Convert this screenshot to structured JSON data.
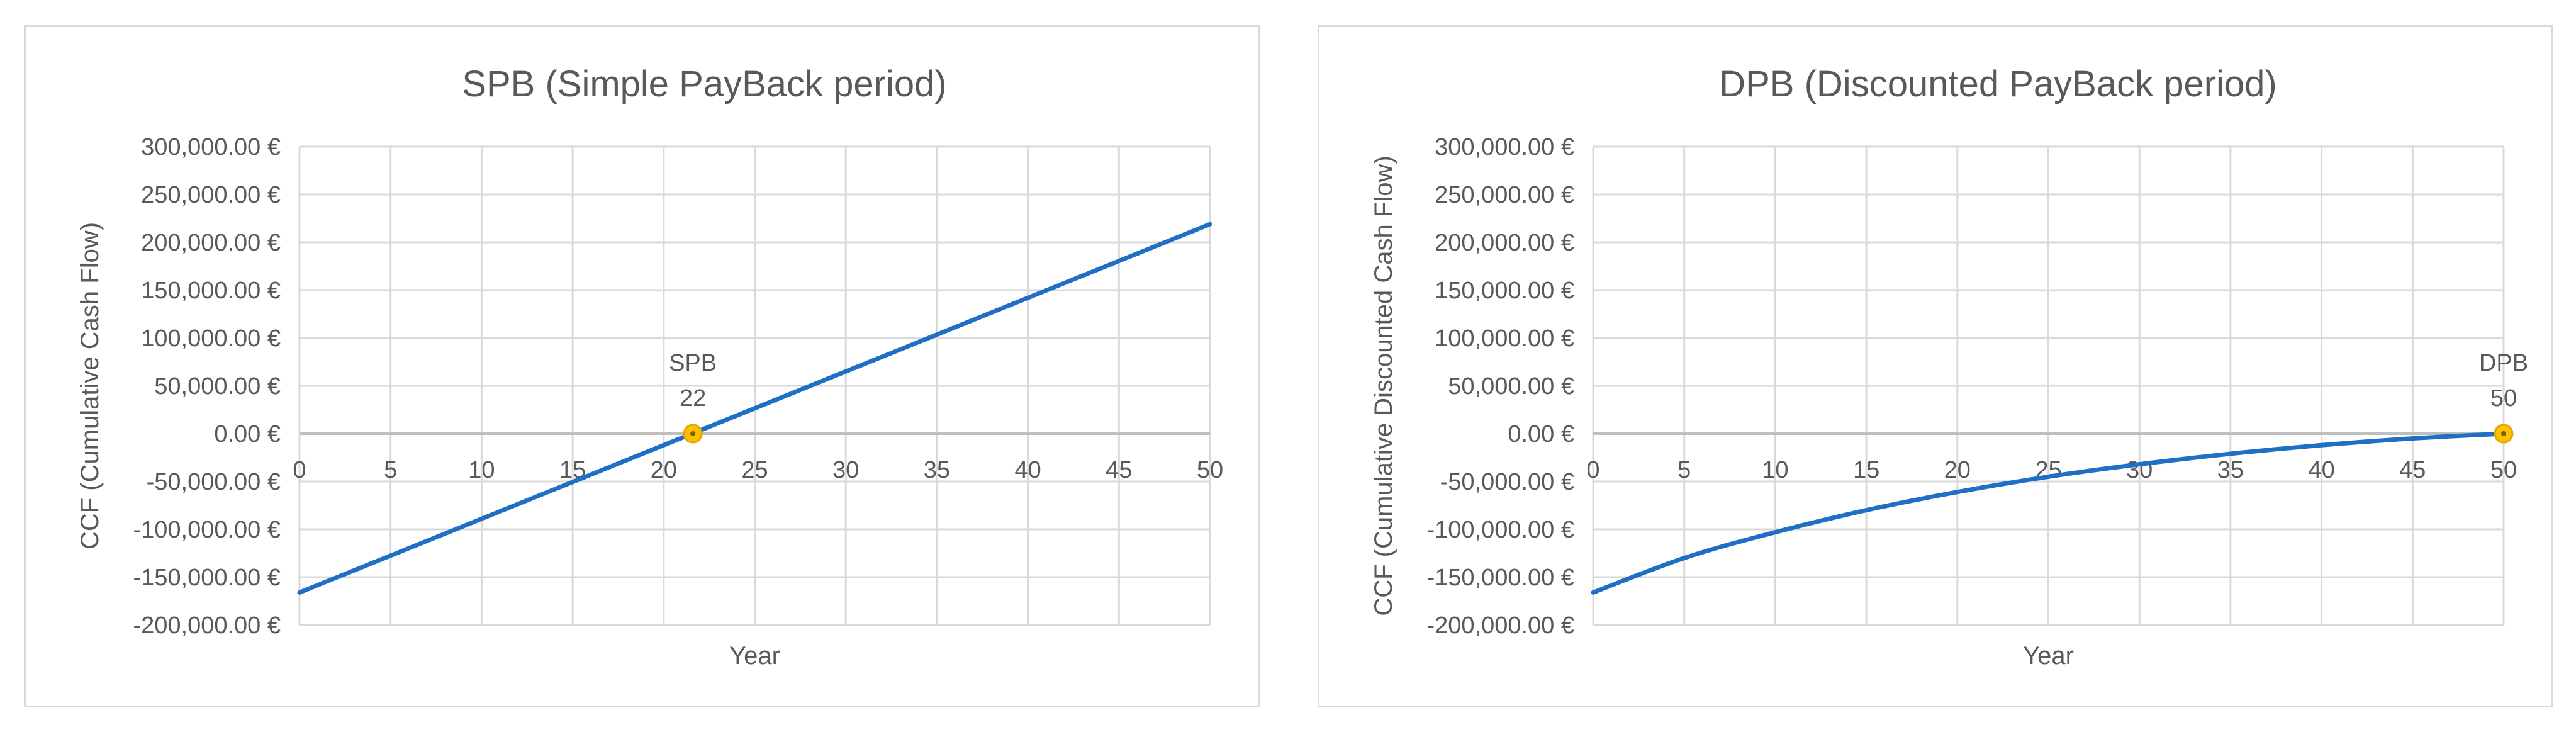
{
  "colors": {
    "line": "#1f6fc5",
    "marker_fill": "#ffc000",
    "marker_stroke": "#ffc000",
    "grid": "#d9d9d9",
    "zero_axis": "#bfbfbf",
    "text": "#595959",
    "border": "#d9d9d9"
  },
  "chart_data": [
    {
      "type": "line",
      "title": "SPB (Simple PayBack period)",
      "xlabel": "Year",
      "ylabel": "CCF (Cumulative Cash Flow)",
      "xlim": [
        0,
        50
      ],
      "ylim": [
        -200000,
        300000
      ],
      "x_ticks": [
        "0",
        "5",
        "10",
        "15",
        "20",
        "25",
        "30",
        "35",
        "40",
        "45",
        "50"
      ],
      "y_ticks": [
        "300,000.00 €",
        "250,000.00 €",
        "200,000.00 €",
        "150,000.00 €",
        "100,000.00 €",
        "50,000.00 €",
        "0.00 €",
        "-50,000.00 €",
        "-100,000.00 €",
        "-150,000.00 €",
        "-200,000.00 €"
      ],
      "grid": true,
      "series": [
        {
          "curve": "linear",
          "x": [
            0,
            50
          ],
          "y": [
            -166000,
            219000
          ]
        }
      ],
      "marker": {
        "x": 21.6,
        "y": 0,
        "label_name": "SPB",
        "label_value": "22"
      }
    },
    {
      "type": "line",
      "title": "DPB (Discounted PayBack period)",
      "xlabel": "Year",
      "ylabel": "CCF (Cumulative Discounted Cash Flow)",
      "xlim": [
        0,
        50
      ],
      "ylim": [
        -200000,
        300000
      ],
      "x_ticks": [
        "0",
        "5",
        "10",
        "15",
        "20",
        "25",
        "30",
        "35",
        "40",
        "45",
        "50"
      ],
      "y_ticks": [
        "300,000.00 €",
        "250,000.00 €",
        "200,000.00 €",
        "150,000.00 €",
        "100,000.00 €",
        "50,000.00 €",
        "0.00 €",
        "-50,000.00 €",
        "-100,000.00 €",
        "-150,000.00 €",
        "-200,000.00 €"
      ],
      "grid": true,
      "series": [
        {
          "curve": "smooth",
          "x": [
            0,
            5,
            10,
            15,
            20,
            25,
            30,
            35,
            40,
            45,
            50
          ],
          "y": [
            -166000,
            -130000,
            -103000,
            -80000,
            -61000,
            -45000,
            -32000,
            -21000,
            -12000,
            -5000,
            0
          ]
        }
      ],
      "marker": {
        "x": 50,
        "y": 0,
        "label_name": "DPB",
        "label_value": "50"
      }
    }
  ]
}
